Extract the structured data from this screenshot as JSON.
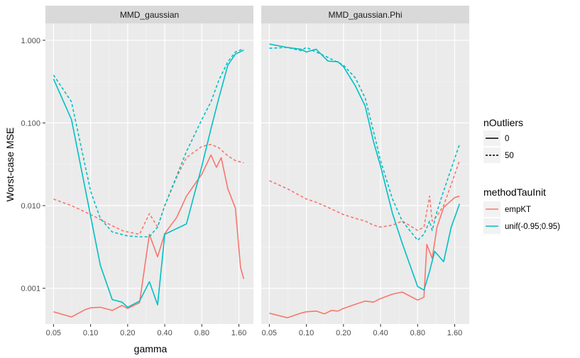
{
  "chart_data": {
    "type": "line",
    "xlabel": "gamma",
    "ylabel": "Worst-case MSE",
    "x_scale": "log",
    "y_scale": "log",
    "xlim": [
      0.043,
      2.1
    ],
    "ylim": [
      0.00037,
      1.6
    ],
    "x_ticks": [
      0.05,
      0.1,
      0.2,
      0.4,
      0.8,
      1.6
    ],
    "x_tick_labels": [
      "0.05",
      "0.10",
      "0.20",
      "0.40",
      "0.80",
      "1.60"
    ],
    "y_ticks": [
      0.001,
      0.01,
      0.1,
      1.0
    ],
    "y_tick_labels": [
      "0.001",
      "0.010",
      "0.100",
      "1.000"
    ],
    "grid": true,
    "colors": {
      "empKT": "#F8766D",
      "unif": "#00BFC4"
    },
    "legends": [
      {
        "title": "nOutliers",
        "entries": [
          {
            "label": "0",
            "linetype": "solid"
          },
          {
            "label": "50",
            "linetype": "dashed"
          }
        ]
      },
      {
        "title": "methodTauInit",
        "entries": [
          {
            "label": "empKT",
            "color": "#F8766D"
          },
          {
            "label": "unif(-0.95;0.95)",
            "color": "#00BFC4"
          }
        ]
      }
    ],
    "panels": [
      {
        "title": "MMD_gaussian",
        "series": [
          {
            "method": "empKT",
            "outliers": "0",
            "color": "#F8766D",
            "linetype": "solid",
            "x": [
              0.05,
              0.07,
              0.09,
              0.1,
              0.12,
              0.15,
              0.18,
              0.2,
              0.25,
              0.3,
              0.35,
              0.4,
              0.5,
              0.6,
              0.8,
              0.95,
              1.05,
              1.15,
              1.3,
              1.5,
              1.65,
              1.75
            ],
            "y": [
              0.00052,
              0.00045,
              0.00055,
              0.00058,
              0.00059,
              0.00054,
              0.00062,
              0.00057,
              0.00067,
              0.0045,
              0.0024,
              0.0046,
              0.0072,
              0.013,
              0.024,
              0.041,
              0.029,
              0.038,
              0.016,
              0.0093,
              0.0018,
              0.0013
            ]
          },
          {
            "method": "empKT",
            "outliers": "50",
            "color": "#F8766D",
            "linetype": "dashed",
            "x": [
              0.05,
              0.07,
              0.1,
              0.12,
              0.15,
              0.18,
              0.2,
              0.25,
              0.3,
              0.35,
              0.4,
              0.5,
              0.6,
              0.8,
              0.95,
              1.1,
              1.3,
              1.5,
              1.75
            ],
            "y": [
              0.012,
              0.01,
              0.0078,
              0.0068,
              0.0057,
              0.005,
              0.0048,
              0.0045,
              0.008,
              0.0055,
              0.01,
              0.022,
              0.038,
              0.052,
              0.055,
              0.05,
              0.04,
              0.035,
              0.033
            ]
          },
          {
            "method": "unif(-0.95;0.95)",
            "outliers": "0",
            "color": "#00BFC4",
            "linetype": "solid",
            "x": [
              0.05,
              0.07,
              0.1,
              0.12,
              0.15,
              0.18,
              0.2,
              0.25,
              0.3,
              0.35,
              0.4,
              0.6,
              0.8,
              0.95,
              1.1,
              1.3,
              1.5,
              1.75
            ],
            "y": [
              0.34,
              0.11,
              0.0075,
              0.0019,
              0.00073,
              0.00068,
              0.00059,
              0.0007,
              0.0012,
              0.00063,
              0.0045,
              0.006,
              0.03,
              0.085,
              0.2,
              0.5,
              0.68,
              0.76
            ]
          },
          {
            "method": "unif(-0.95;0.95)",
            "outliers": "50",
            "color": "#00BFC4",
            "linetype": "dashed",
            "x": [
              0.05,
              0.07,
              0.1,
              0.12,
              0.15,
              0.2,
              0.25,
              0.3,
              0.35,
              0.4,
              0.6,
              0.8,
              0.95,
              1.1,
              1.3,
              1.5,
              1.75
            ],
            "y": [
              0.38,
              0.18,
              0.015,
              0.007,
              0.0048,
              0.0043,
              0.0042,
              0.0042,
              0.0055,
              0.01,
              0.045,
              0.11,
              0.18,
              0.33,
              0.55,
              0.72,
              0.79
            ]
          }
        ]
      },
      {
        "title": "MMD_gaussian.Phi",
        "series": [
          {
            "method": "empKT",
            "outliers": "0",
            "color": "#F8766D",
            "linetype": "solid",
            "x": [
              0.05,
              0.07,
              0.09,
              0.1,
              0.12,
              0.14,
              0.16,
              0.18,
              0.2,
              0.25,
              0.3,
              0.35,
              0.4,
              0.5,
              0.6,
              0.8,
              0.9,
              0.95,
              1.05,
              1.15,
              1.3,
              1.45,
              1.6,
              1.75
            ],
            "y": [
              0.0005,
              0.00044,
              0.0005,
              0.00052,
              0.00053,
              0.00049,
              0.00054,
              0.00053,
              0.00057,
              0.00064,
              0.0007,
              0.00068,
              0.00075,
              0.00085,
              0.0009,
              0.00072,
              0.00078,
              0.0034,
              0.0023,
              0.0055,
              0.0095,
              0.011,
              0.0125,
              0.013
            ]
          },
          {
            "method": "empKT",
            "outliers": "50",
            "color": "#F8766D",
            "linetype": "dashed",
            "x": [
              0.05,
              0.07,
              0.1,
              0.12,
              0.15,
              0.2,
              0.25,
              0.3,
              0.35,
              0.4,
              0.5,
              0.6,
              0.8,
              0.9,
              1.0,
              1.05,
              1.15,
              1.3,
              1.5,
              1.75
            ],
            "y": [
              0.02,
              0.016,
              0.012,
              0.011,
              0.0095,
              0.0078,
              0.007,
              0.0065,
              0.0058,
              0.0055,
              0.0058,
              0.0065,
              0.005,
              0.0055,
              0.013,
              0.0065,
              0.0075,
              0.01,
              0.018,
              0.035
            ]
          },
          {
            "method": "unif(-0.95;0.95)",
            "outliers": "0",
            "color": "#00BFC4",
            "linetype": "solid",
            "x": [
              0.05,
              0.07,
              0.09,
              0.1,
              0.12,
              0.15,
              0.18,
              0.2,
              0.25,
              0.3,
              0.35,
              0.4,
              0.5,
              0.6,
              0.8,
              0.9,
              1.0,
              1.1,
              1.3,
              1.5,
              1.75
            ],
            "y": [
              0.9,
              0.82,
              0.78,
              0.72,
              0.78,
              0.56,
              0.55,
              0.48,
              0.28,
              0.16,
              0.06,
              0.03,
              0.008,
              0.0035,
              0.00105,
              0.00095,
              0.0016,
              0.0028,
              0.0021,
              0.0055,
              0.0105
            ]
          },
          {
            "method": "unif(-0.95;0.95)",
            "outliers": "50",
            "color": "#00BFC4",
            "linetype": "dashed",
            "x": [
              0.05,
              0.07,
              0.09,
              0.1,
              0.12,
              0.15,
              0.2,
              0.25,
              0.3,
              0.35,
              0.4,
              0.5,
              0.6,
              0.8,
              0.9,
              1.0,
              1.05,
              1.15,
              1.3,
              1.5,
              1.75
            ],
            "y": [
              0.8,
              0.82,
              0.75,
              0.82,
              0.72,
              0.62,
              0.5,
              0.35,
              0.2,
              0.08,
              0.035,
              0.012,
              0.0065,
              0.0038,
              0.0045,
              0.0065,
              0.005,
              0.0085,
              0.015,
              0.028,
              0.055
            ]
          }
        ]
      }
    ]
  }
}
